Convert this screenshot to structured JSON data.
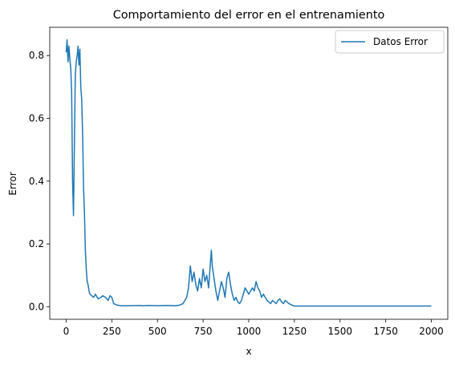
{
  "chart_data": {
    "type": "line",
    "title": "Comportamiento del error en el entrenamiento",
    "xlabel": "x",
    "ylabel": "Error",
    "xlim": [
      -90,
      2090
    ],
    "ylim": [
      -0.04,
      0.89
    ],
    "xticks": [
      0,
      250,
      500,
      750,
      1000,
      1250,
      1500,
      1750,
      2000
    ],
    "xtick_labels": [
      "0",
      "250",
      "500",
      "750",
      "1000",
      "1250",
      "1500",
      "1750",
      "2000"
    ],
    "yticks": [
      0.0,
      0.2,
      0.4,
      0.6,
      0.8
    ],
    "ytick_labels": [
      "0.0",
      "0.2",
      "0.4",
      "0.6",
      "0.8"
    ],
    "grid": false,
    "legend_position": "top-right",
    "colors": {
      "series": "#1f77b4"
    },
    "series": [
      {
        "name": "Datos Error",
        "x": [
          0,
          5,
          10,
          15,
          20,
          25,
          30,
          35,
          40,
          45,
          50,
          55,
          60,
          65,
          70,
          75,
          80,
          85,
          90,
          95,
          100,
          105,
          110,
          115,
          120,
          125,
          130,
          140,
          150,
          160,
          175,
          190,
          200,
          215,
          230,
          240,
          250,
          260,
          280,
          300,
          350,
          400,
          420,
          450,
          500,
          550,
          600,
          620,
          640,
          660,
          670,
          680,
          690,
          700,
          710,
          720,
          730,
          740,
          750,
          760,
          770,
          780,
          790,
          795,
          800,
          810,
          820,
          830,
          840,
          850,
          860,
          870,
          880,
          890,
          900,
          910,
          920,
          930,
          940,
          950,
          960,
          970,
          980,
          990,
          1000,
          1010,
          1020,
          1030,
          1040,
          1050,
          1060,
          1070,
          1080,
          1090,
          1100,
          1110,
          1120,
          1130,
          1140,
          1150,
          1160,
          1170,
          1180,
          1190,
          1200,
          1220,
          1240,
          1250,
          1300,
          1400,
          1500,
          1600,
          1700,
          1800,
          1900,
          2000
        ],
        "y": [
          0.81,
          0.85,
          0.78,
          0.83,
          0.79,
          0.76,
          0.68,
          0.4,
          0.29,
          0.52,
          0.74,
          0.78,
          0.8,
          0.83,
          0.77,
          0.82,
          0.7,
          0.66,
          0.55,
          0.38,
          0.3,
          0.18,
          0.12,
          0.08,
          0.07,
          0.05,
          0.04,
          0.035,
          0.03,
          0.04,
          0.025,
          0.03,
          0.035,
          0.03,
          0.02,
          0.035,
          0.03,
          0.01,
          0.005,
          0.003,
          0.003,
          0.004,
          0.003,
          0.004,
          0.003,
          0.004,
          0.003,
          0.005,
          0.01,
          0.03,
          0.06,
          0.13,
          0.08,
          0.11,
          0.07,
          0.05,
          0.09,
          0.06,
          0.12,
          0.08,
          0.1,
          0.06,
          0.14,
          0.18,
          0.13,
          0.09,
          0.05,
          0.02,
          0.05,
          0.08,
          0.06,
          0.03,
          0.09,
          0.11,
          0.07,
          0.04,
          0.02,
          0.03,
          0.015,
          0.01,
          0.02,
          0.04,
          0.06,
          0.05,
          0.04,
          0.05,
          0.06,
          0.05,
          0.08,
          0.06,
          0.05,
          0.03,
          0.04,
          0.03,
          0.02,
          0.015,
          0.01,
          0.02,
          0.015,
          0.01,
          0.02,
          0.025,
          0.015,
          0.01,
          0.02,
          0.01,
          0.004,
          0.002,
          0.002,
          0.002,
          0.002,
          0.002,
          0.002,
          0.002,
          0.002,
          0.002
        ]
      }
    ]
  }
}
